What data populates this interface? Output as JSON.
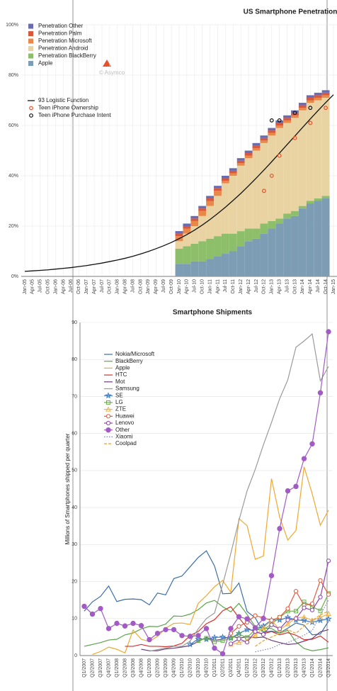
{
  "chart_data": [
    {
      "type": "bar",
      "stacked": true,
      "title": "US Smartphone Penetration",
      "annotation": "© Asymco",
      "grid": true,
      "categories": [
        "Jan-05",
        "Apr-05",
        "Jul-05",
        "Oct-05",
        "Jan-06",
        "Apr-06",
        "Jul-06",
        "Oct-06",
        "Jan-07",
        "Apr-07",
        "Jul-07",
        "Oct-07",
        "Jan-08",
        "Apr-08",
        "Jul-08",
        "Oct-08",
        "Jan-09",
        "Apr-09",
        "Jul-09",
        "Oct-09",
        "Jan-10",
        "Apr-10",
        "Jul-10",
        "Oct-10",
        "Jan-11",
        "Apr-11",
        "Jul-11",
        "Oct-11",
        "Jan-12",
        "Apr-12",
        "Jul-12",
        "Oct-12",
        "Jan-13",
        "Apr-13",
        "Jul-13",
        "Oct-13",
        "Jan-14",
        "Apr-14",
        "Jul-14",
        "Oct-14",
        "Jan-15"
      ],
      "ylim": [
        0,
        100
      ],
      "yticks": [
        {
          "value": 0,
          "label": "0%"
        },
        {
          "value": 20,
          "label": "20%"
        },
        {
          "value": 40,
          "label": "40%"
        },
        {
          "value": 60,
          "label": "60%"
        },
        {
          "value": 80,
          "label": "80%"
        },
        {
          "value": 100,
          "label": "100%"
        }
      ],
      "series": [
        {
          "name": "Penetration Other",
          "type": "bar",
          "color": "#6b6bb0",
          "values": [
            null,
            null,
            null,
            null,
            null,
            null,
            null,
            null,
            null,
            null,
            null,
            null,
            null,
            null,
            null,
            null,
            null,
            null,
            null,
            null,
            1,
            1,
            1,
            1,
            1,
            1,
            1,
            1,
            1,
            1,
            1,
            1,
            1,
            1,
            1,
            1,
            1,
            1,
            1,
            1,
            null
          ]
        },
        {
          "name": "Penetration Palm",
          "type": "bar",
          "color": "#d9573a",
          "values": [
            null,
            null,
            null,
            null,
            null,
            null,
            null,
            null,
            null,
            null,
            null,
            null,
            null,
            null,
            null,
            null,
            null,
            null,
            null,
            null,
            1,
            1,
            1,
            1,
            1,
            1,
            1,
            1,
            1,
            1,
            1,
            1,
            1,
            1,
            1,
            1,
            1,
            1,
            1,
            1,
            null
          ]
        },
        {
          "name": "Penetration Microsoft",
          "type": "bar",
          "color": "#e8894a",
          "values": [
            null,
            null,
            null,
            null,
            null,
            null,
            null,
            null,
            null,
            null,
            null,
            null,
            null,
            null,
            null,
            null,
            null,
            null,
            null,
            null,
            2,
            2,
            2,
            2,
            2,
            2,
            1,
            1,
            1,
            1,
            1,
            1,
            1,
            1,
            1,
            1,
            1,
            1,
            1,
            1,
            null
          ]
        },
        {
          "name": "Penetration Android",
          "type": "bar",
          "color": "#e9d3a2",
          "values": [
            null,
            null,
            null,
            null,
            null,
            null,
            null,
            null,
            null,
            null,
            null,
            null,
            null,
            null,
            null,
            null,
            null,
            null,
            null,
            null,
            3,
            5,
            7,
            10,
            13,
            16,
            20,
            23,
            26,
            28,
            31,
            32,
            34,
            36,
            36,
            37,
            38,
            39,
            39,
            39,
            null
          ]
        },
        {
          "name": "Penetration BlackBerry",
          "type": "bar",
          "color": "#8dbf6a",
          "values": [
            null,
            null,
            null,
            null,
            null,
            null,
            null,
            null,
            null,
            null,
            null,
            null,
            null,
            null,
            null,
            null,
            null,
            null,
            null,
            null,
            6,
            7,
            7,
            8,
            8,
            8,
            8,
            7,
            6,
            5,
            4,
            4,
            3,
            2,
            2,
            2,
            1,
            1,
            1,
            1,
            null
          ]
        },
        {
          "name": "Apple",
          "type": "bar",
          "color": "#7d9db5",
          "values": [
            null,
            null,
            null,
            null,
            null,
            null,
            null,
            null,
            null,
            null,
            null,
            null,
            null,
            null,
            null,
            null,
            null,
            null,
            null,
            null,
            5,
            5,
            6,
            6,
            7,
            8,
            9,
            10,
            12,
            14,
            15,
            17,
            19,
            21,
            23,
            24,
            27,
            29,
            30,
            31,
            null
          ]
        },
        {
          "name": "93 Logistic Function",
          "type": "line",
          "color": "#111111",
          "values": [
            2,
            2.2,
            2.4,
            2.6,
            2.9,
            3.2,
            3.5,
            3.9,
            4.3,
            4.8,
            5.3,
            5.9,
            6.5,
            7.2,
            8,
            8.9,
            9.9,
            11,
            12.2,
            13.5,
            15,
            16.6,
            18.4,
            20.4,
            22.6,
            25,
            27.5,
            30.2,
            33,
            36,
            39.1,
            42.3,
            45.6,
            49,
            52.4,
            55.8,
            59.2,
            62.6,
            65.9,
            69.1,
            72.2
          ]
        },
        {
          "name": "Teen iPhone Ownership",
          "type": "scatter",
          "color": "#e8502a",
          "values": [
            null,
            null,
            null,
            null,
            null,
            null,
            null,
            null,
            null,
            null,
            null,
            null,
            null,
            null,
            null,
            null,
            null,
            null,
            null,
            null,
            null,
            null,
            null,
            null,
            null,
            null,
            null,
            null,
            null,
            null,
            null,
            34,
            40,
            48,
            null,
            55,
            null,
            61,
            null,
            67,
            null
          ]
        },
        {
          "name": "Teen iPhone Purchase Intent",
          "type": "scatter",
          "color": "#111111",
          "values": [
            null,
            null,
            null,
            null,
            null,
            null,
            null,
            null,
            null,
            null,
            null,
            null,
            null,
            null,
            null,
            null,
            null,
            null,
            null,
            null,
            null,
            null,
            null,
            null,
            null,
            null,
            null,
            null,
            null,
            null,
            null,
            null,
            62,
            62,
            null,
            65,
            null,
            67,
            null,
            null,
            null
          ]
        }
      ]
    },
    {
      "type": "line",
      "title": "Smartphone Shipments",
      "ylabel": "Millions of Smartphones shipped per quarter",
      "grid": true,
      "categories": [
        "Q1/2007",
        "Q2/2007",
        "Q3/2007",
        "Q4/2007",
        "Q1/2008",
        "Q2/2008",
        "Q3/2008",
        "Q4/2008",
        "Q1/2009",
        "Q2/2009",
        "Q3/2009",
        "Q4/2009",
        "Q1/2010",
        "Q2/2010",
        "Q3/2010",
        "Q4/2010",
        "Q1/2011",
        "Q2/2011",
        "Q3/2011",
        "Q4/2011",
        "Q1/2012",
        "Q2/2012",
        "Q3/2012",
        "Q4/2012",
        "Q1/2013",
        "Q2/2013",
        "Q3/2013",
        "Q4/2013",
        "Q1/2014",
        "Q2/2014",
        "Q3/2014"
      ],
      "ylim": [
        0,
        90
      ],
      "yticks": [
        0,
        10,
        20,
        30,
        40,
        50,
        60,
        70,
        80,
        90
      ],
      "series": [
        {
          "name": "Nokia/Microsoft",
          "color": "#3a6fa8",
          "values": [
            12,
            14.5,
            16,
            18.8,
            14.6,
            15.2,
            15.3,
            15.1,
            13.7,
            16.9,
            16.4,
            20.8,
            21.5,
            24,
            26.5,
            28.3,
            24.2,
            16.7,
            16.8,
            19.6,
            11.9,
            10.2,
            6.3,
            6.6,
            6.1,
            7.4,
            8.8,
            8.2,
            5.6,
            5.8,
            9.3
          ]
        },
        {
          "name": "BlackBerry",
          "color": "#5aa64a",
          "values": [
            2.5,
            3,
            3.5,
            4.2,
            4.4,
            5.6,
            6.1,
            7.2,
            7.9,
            7.8,
            8.5,
            10.7,
            10.6,
            11.2,
            12.4,
            14.2,
            14.9,
            13.2,
            11.8,
            14.1,
            11.1,
            7.8,
            7.4,
            7.3,
            6,
            6.8,
            3.7,
            1.9,
            1.3,
            1.6,
            2.1
          ]
        },
        {
          "name": "Apple",
          "color": "#f0a830",
          "values": [
            null,
            0.3,
            1.1,
            2.3,
            1.7,
            0.7,
            6.9,
            4.4,
            3.8,
            5.2,
            7.4,
            8.7,
            8.8,
            8.4,
            14.1,
            16.2,
            18.6,
            20.3,
            17.1,
            37,
            35.1,
            26,
            26.9,
            47.8,
            37.4,
            31.2,
            33.8,
            51,
            43.7,
            35.2,
            39.3
          ]
        },
        {
          "name": "HTC",
          "color": "#d9302a",
          "values": [
            null,
            null,
            null,
            null,
            null,
            2.5,
            2.5,
            3,
            2.5,
            2.5,
            2.4,
            2.6,
            3.3,
            5.4,
            6.5,
            8.6,
            9.7,
            12.1,
            13.2,
            10.2,
            7.5,
            6.3,
            5.9,
            6.5,
            5.6,
            6.2,
            5.5,
            4.3,
            4.4,
            5.3,
            3.6
          ]
        },
        {
          "name": "Mot",
          "color": "#6a3d7a",
          "values": [
            null,
            null,
            null,
            null,
            null,
            null,
            null,
            1.7,
            1.3,
            1.3,
            1.8,
            2,
            2.3,
            2.7,
            3.8,
            4.9,
            4.1,
            4.4,
            5.3,
            4.7,
            5.1,
            4.8,
            5,
            4.1,
            3.5,
            3,
            3.2,
            3.9,
            4.6,
            6.4,
            7
          ]
        },
        {
          "name": "Samsung",
          "color": "#9a9a9a",
          "values": [
            null,
            null,
            null,
            null,
            null,
            null,
            null,
            null,
            1.2,
            1.6,
            2,
            2.5,
            2.5,
            3.9,
            7.2,
            10,
            11.5,
            19.2,
            27.6,
            36.5,
            44.5,
            50.3,
            56.9,
            63,
            69.4,
            74.5,
            83.3,
            85,
            86.9,
            74.2,
            78.1
          ]
        },
        {
          "name": "SE",
          "color": "#3b78c2",
          "marker": "star",
          "values": [
            null,
            null,
            null,
            null,
            null,
            null,
            null,
            null,
            null,
            null,
            null,
            null,
            null,
            3,
            4.5,
            4.4,
            4.9,
            5,
            4.7,
            6,
            7,
            6.8,
            8,
            9.6,
            9.6,
            10.3,
            9.6,
            9.5,
            9,
            9.5,
            9.9
          ]
        },
        {
          "name": "LG",
          "color": "#6ab04c",
          "marker": "square",
          "values": [
            null,
            null,
            null,
            null,
            null,
            null,
            null,
            null,
            null,
            null,
            null,
            null,
            null,
            null,
            4,
            4.7,
            3.7,
            4,
            4.7,
            5.7,
            4.9,
            7,
            7,
            8.5,
            10.3,
            12,
            12,
            14.5,
            13.2,
            12.1,
            16.8
          ]
        },
        {
          "name": "ZTE",
          "color": "#f5b041",
          "marker": "triangle",
          "values": [
            null,
            null,
            null,
            null,
            null,
            null,
            null,
            null,
            null,
            null,
            null,
            null,
            null,
            null,
            null,
            null,
            null,
            null,
            3,
            3.5,
            4,
            5.5,
            7.5,
            9.5,
            7,
            8.5,
            10.2,
            10.4,
            9.5,
            10.3,
            11.3
          ]
        },
        {
          "name": "Huawei",
          "color": "#e05a3c",
          "marker": "circle",
          "values": [
            null,
            null,
            null,
            null,
            null,
            null,
            null,
            null,
            null,
            null,
            null,
            null,
            null,
            null,
            null,
            null,
            null,
            null,
            6,
            7.9,
            9,
            10.8,
            10.2,
            9.5,
            10.4,
            12.7,
            17.4,
            13.6,
            14,
            20.3,
            16.5
          ]
        },
        {
          "name": "Lenovo",
          "color": "#8e44ad",
          "marker": "circle",
          "values": [
            null,
            null,
            null,
            null,
            null,
            null,
            null,
            null,
            null,
            null,
            null,
            null,
            null,
            null,
            null,
            null,
            null,
            null,
            3.2,
            4.5,
            3.6,
            6.5,
            5.7,
            8.3,
            7.2,
            9.6,
            10,
            12.9,
            12.3,
            15.8,
            25.6
          ]
        },
        {
          "name": "Other",
          "color": "#a25bc4",
          "marker": "dot",
          "values": [
            13.3,
            11.2,
            12.7,
            7.3,
            8.7,
            8,
            8.7,
            8.1,
            4.3,
            6,
            7,
            7,
            5.4,
            5.2,
            5.4,
            7.3,
            2,
            0.5,
            7.3,
            10.5,
            9.9,
            7.5,
            10,
            21.6,
            34.3,
            44.5,
            45.7,
            53.2,
            57.2,
            71,
            87.5
          ]
        },
        {
          "name": "Xiaomi",
          "color": "#8080c0",
          "dash": "dotted",
          "values": [
            null,
            null,
            null,
            null,
            null,
            null,
            null,
            null,
            null,
            null,
            null,
            null,
            null,
            null,
            null,
            null,
            null,
            null,
            null,
            null,
            null,
            1,
            1.5,
            2,
            3,
            3.5,
            4.5,
            5.5,
            6.8,
            11,
            15
          ]
        },
        {
          "name": "Coolpad",
          "color": "#e8a030",
          "dash": "dashed",
          "values": [
            null,
            null,
            null,
            null,
            null,
            null,
            null,
            null,
            null,
            null,
            null,
            null,
            null,
            null,
            null,
            null,
            null,
            null,
            null,
            null,
            null,
            2.5,
            4,
            5,
            6,
            7,
            6,
            8,
            9.5,
            11,
            12
          ]
        }
      ]
    }
  ]
}
